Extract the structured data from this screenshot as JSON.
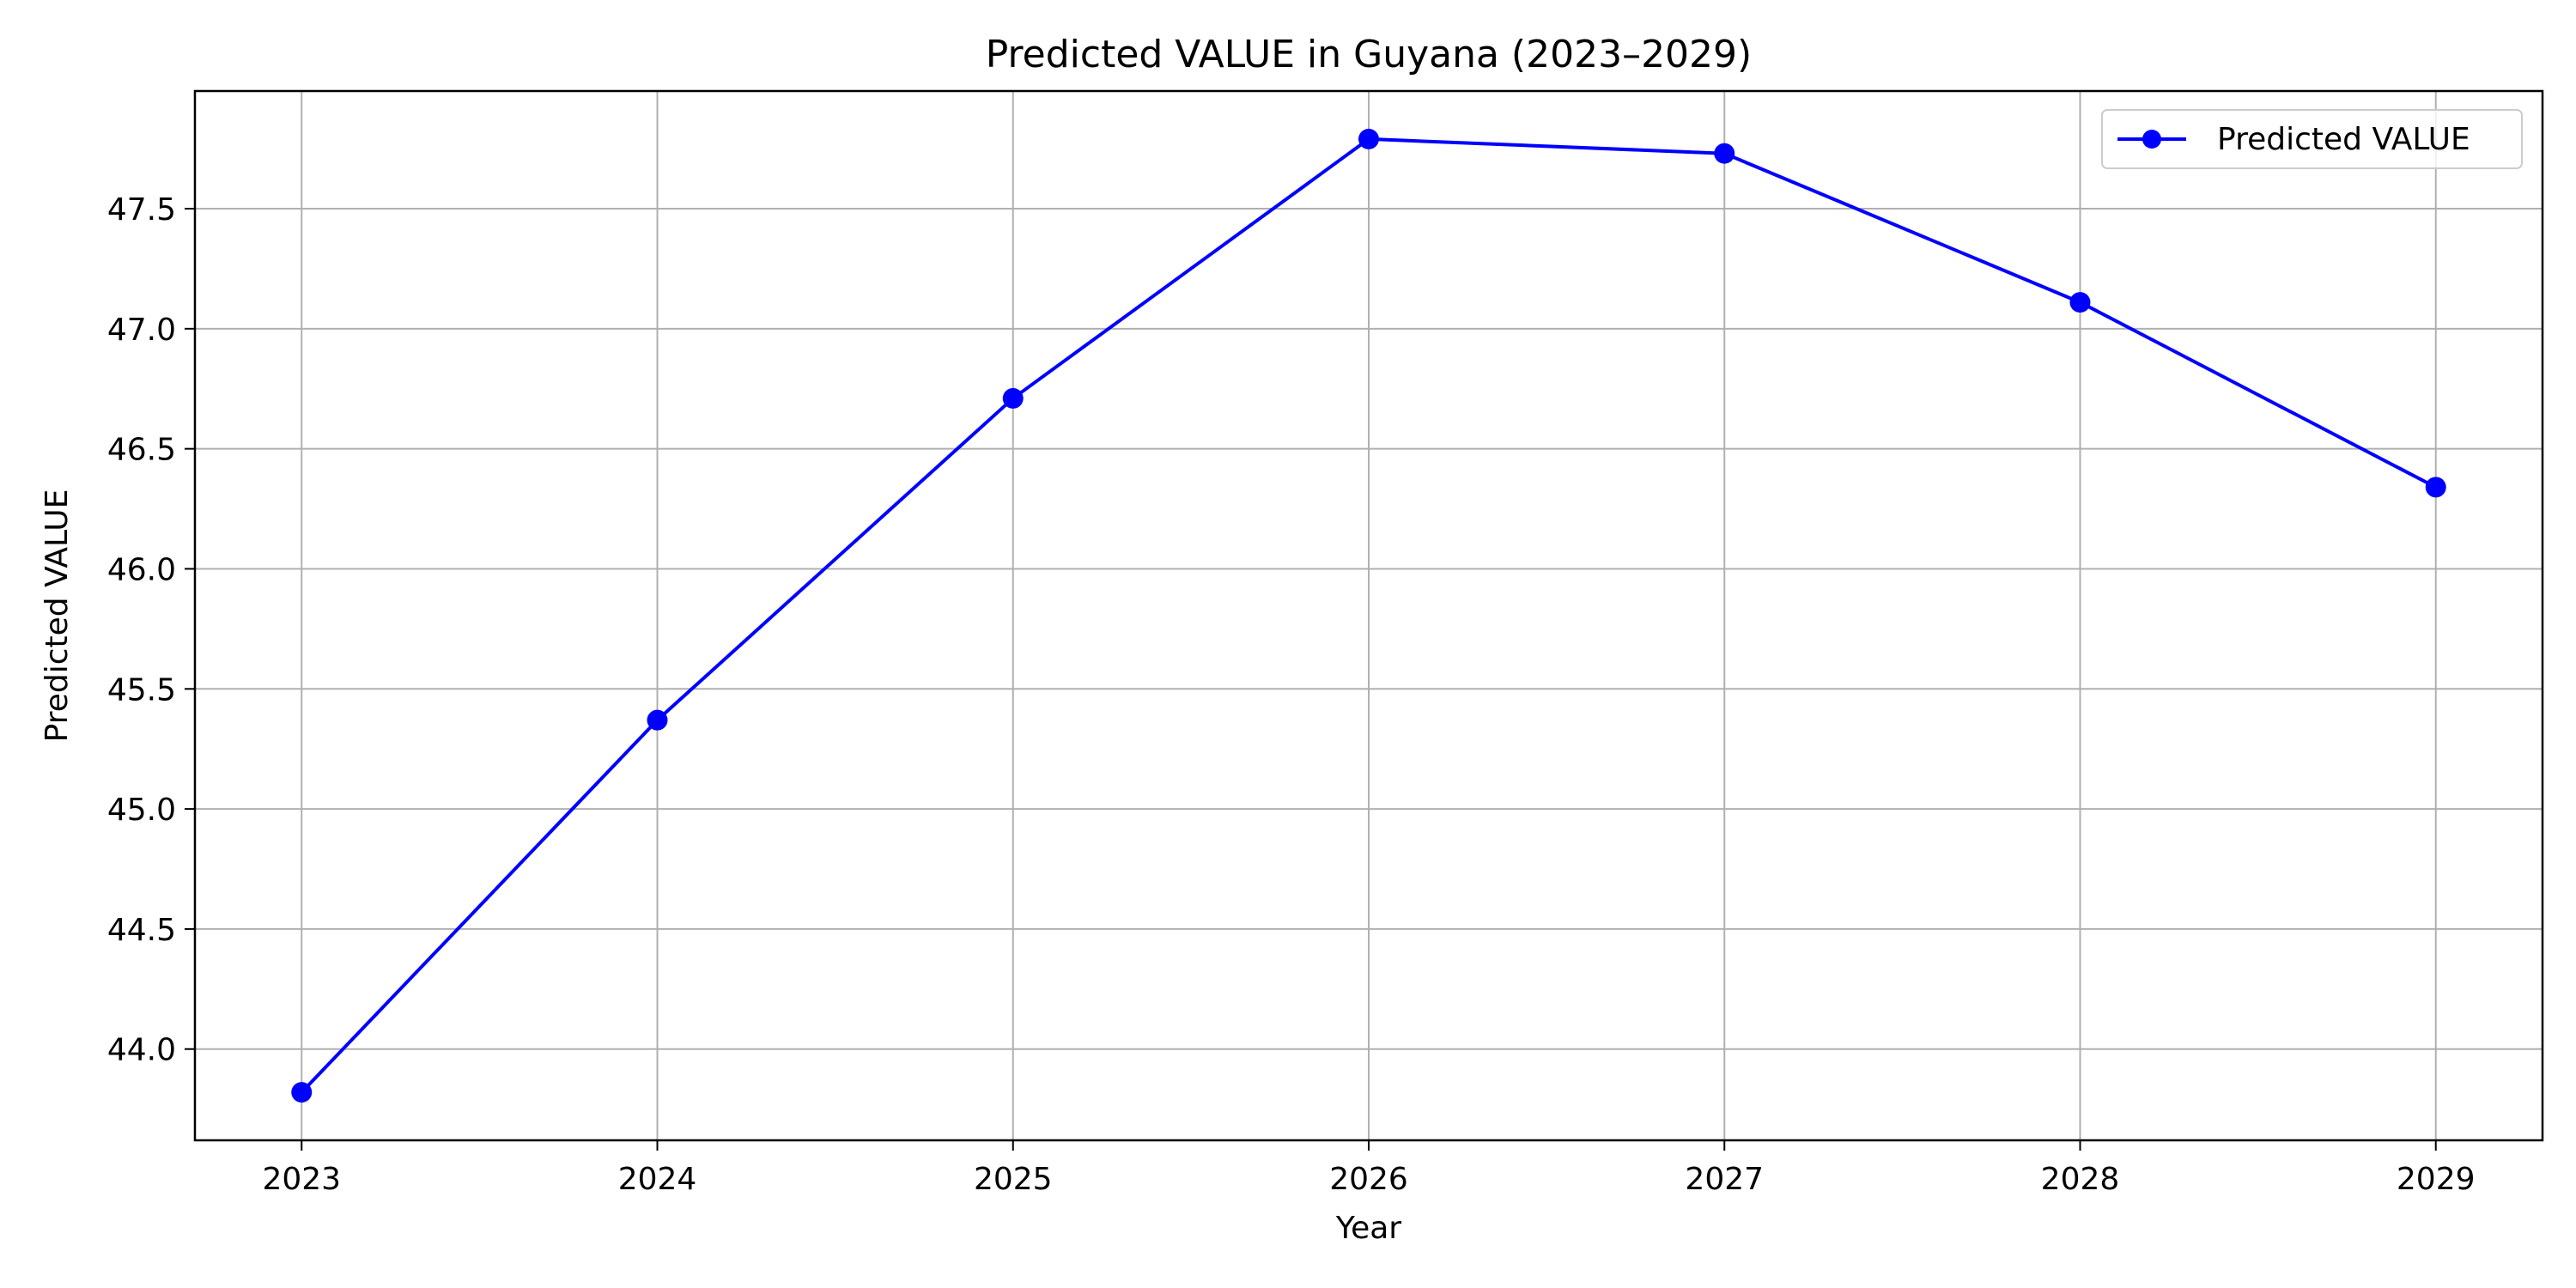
{
  "chart_data": {
    "type": "line",
    "title": "Predicted VALUE in Guyana (2023–2029)",
    "xlabel": "Year",
    "ylabel": "Predicted VALUE",
    "x": [
      2023,
      2024,
      2025,
      2026,
      2027,
      2028,
      2029
    ],
    "series": [
      {
        "name": "Predicted VALUE",
        "values": [
          43.82,
          45.37,
          46.71,
          47.79,
          47.73,
          47.11,
          46.34
        ],
        "color": "#0000ff",
        "marker": "circle"
      }
    ],
    "xlim": [
      2022.7,
      2029.3
    ],
    "ylim": [
      43.62,
      47.99
    ],
    "xticks": [
      "2023",
      "2024",
      "2025",
      "2026",
      "2027",
      "2028",
      "2029"
    ],
    "yticks": [
      "44.0",
      "44.5",
      "45.0",
      "45.5",
      "46.0",
      "46.5",
      "47.0",
      "47.5"
    ],
    "grid": true,
    "grid_color": "#b0b0b0",
    "legend_position": "top-right"
  }
}
